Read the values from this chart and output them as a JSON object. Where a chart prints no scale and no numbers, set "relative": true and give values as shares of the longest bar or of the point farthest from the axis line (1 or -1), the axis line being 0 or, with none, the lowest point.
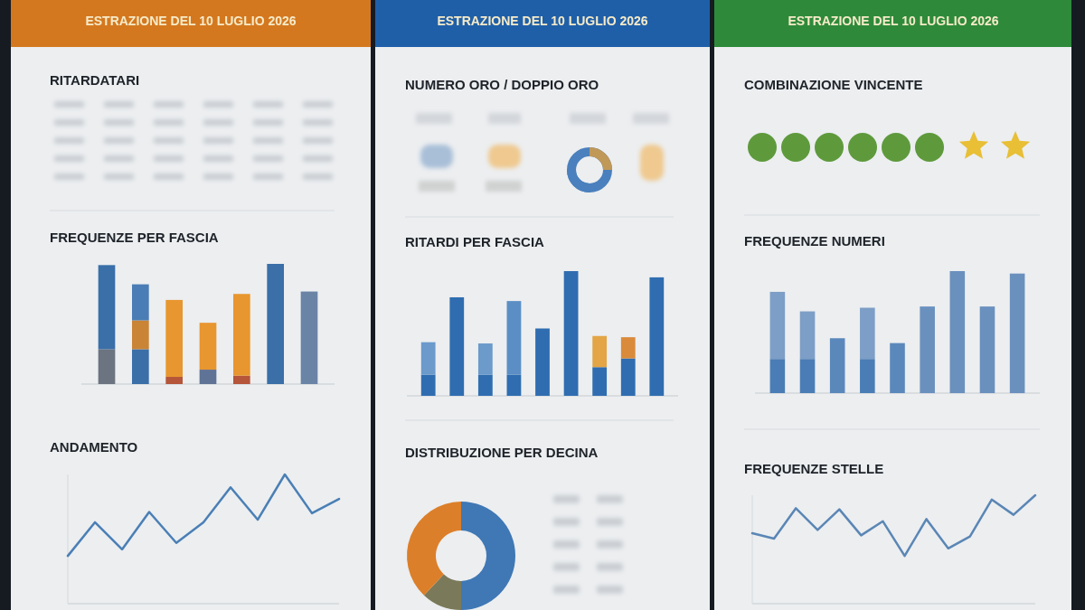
{
  "chart_data": [
    {
      "type": "other",
      "title": "ESTRAZIONE DEL 10 LUGLIO 2026"
    },
    {
      "type": "other",
      "title": "RITARDATARI"
    },
    {
      "type": "bar",
      "title": "FREQUENZE PER FASCIA",
      "relative": true,
      "stacked": true,
      "categories": [
        null,
        null,
        null,
        null,
        null,
        null,
        null
      ],
      "series": [
        {
          "colors": [
            "#6b7480",
            "#3a6fa8",
            "#b5553a",
            "#5f7396",
            "#b5553a",
            "#3a6fa8",
            "#6a84a6"
          ],
          "values": [
            0.29,
            0.29,
            0.06,
            0.12,
            0.07,
            1,
            0.77
          ]
        },
        {
          "colors": [
            "#3a6fa8",
            "#c98436",
            "#e8962f",
            "#e8962f",
            "#e8962f",
            "#3a6fa8",
            "#6a84a6"
          ],
          "values": [
            0.7,
            0.24,
            0.64,
            0.39,
            0.68,
            0,
            0
          ]
        },
        {
          "colors": [
            "#3a6fa8",
            "#4a7db5",
            "#e8962f",
            "#e8962f",
            "#e8962f",
            "#3a6fa8",
            "#6a84a6"
          ],
          "values": [
            0,
            0.3,
            0,
            0,
            0,
            0,
            0
          ]
        }
      ]
    },
    {
      "type": "line",
      "title": "ANDAMENTO",
      "relative": true,
      "categories": [
        null,
        null,
        null,
        null,
        null,
        null,
        null,
        null,
        null,
        null,
        null
      ],
      "series": [
        {
          "color": "#4a7fb5",
          "values": [
            0.37,
            0.63,
            0.42,
            0.71,
            0.47,
            0.63,
            0.9,
            0.65,
            1,
            0.7,
            0.81
          ]
        }
      ]
    },
    {
      "type": "other",
      "title": "ESTRAZIONE DEL 10 LUGLIO 2026"
    },
    {
      "type": "other",
      "title": "NUMERO ORO / DOPPIO ORO"
    },
    {
      "type": "bar",
      "title": "RITARDI PER FASCIA",
      "relative": true,
      "stacked": true,
      "categories": [
        null,
        null,
        null,
        null,
        null,
        null,
        null,
        null,
        null
      ],
      "series": [
        {
          "color": "#2f6db0",
          "values": [
            0.17,
            0.79,
            0.17,
            0.17,
            0.54,
            1,
            0.23,
            0.3,
            0.95
          ]
        },
        {
          "colors": [
            "#6b9acb",
            "#6b9acb",
            "#6b9acb",
            "#5b8ec5",
            "#6b9acb",
            "#6b9acb",
            "#e3a545",
            "#d98a3a",
            "#6b9acb"
          ],
          "values": [
            0.26,
            0,
            0.25,
            0.59,
            0,
            0,
            0.25,
            0.17,
            0
          ]
        }
      ]
    },
    {
      "type": "donut",
      "title": "DISTRIBUZIONE PER DECINA",
      "categories": [
        null,
        null,
        null
      ],
      "values": [
        50,
        12,
        38
      ],
      "colors": [
        "#3f78b5",
        "#7a7a5a",
        "#dc7f2a"
      ]
    },
    {
      "type": "other",
      "title": "ESTRAZIONE DEL 10 LUGLIO 2026"
    },
    {
      "type": "other",
      "title": "COMBINAZIONE VINCENTE"
    },
    {
      "type": "bar",
      "title": "FREQUENZE NUMERI",
      "relative": true,
      "stacked": true,
      "categories": [
        null,
        null,
        null,
        null,
        null,
        null,
        null,
        null,
        null
      ],
      "series": [
        {
          "colors": [
            "#4a7db5",
            "#4a7db5",
            "#5a88bb",
            "#4a7db5",
            "#5a88bb",
            "#6a90be",
            "#6a90be",
            "#6a90be",
            "#6a90be"
          ],
          "values": [
            0.28,
            0.28,
            0.45,
            0.28,
            0.41,
            0.71,
            1,
            0.71,
            0.98
          ]
        },
        {
          "color": "#7d9ec6",
          "values": [
            0.55,
            0.39,
            0,
            0.42,
            0,
            0,
            0,
            0,
            0
          ]
        }
      ]
    },
    {
      "type": "line",
      "title": "FREQUENZE STELLE",
      "relative": true,
      "categories": [
        null,
        null,
        null,
        null,
        null,
        null,
        null,
        null,
        null,
        null,
        null,
        null,
        null,
        null
      ],
      "series": [
        {
          "color": "#5a86b5",
          "values": [
            0.65,
            0.6,
            0.88,
            0.68,
            0.87,
            0.63,
            0.76,
            0.44,
            0.78,
            0.51,
            0.62,
            0.96,
            0.82,
            1
          ]
        }
      ]
    }
  ]
}
